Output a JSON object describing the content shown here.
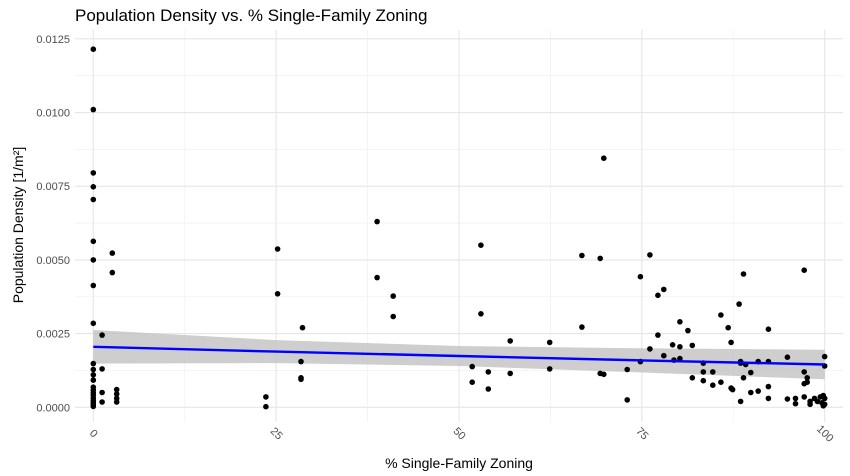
{
  "chart_data": {
    "type": "scatter",
    "title": "Population Density vs. % Single-Family Zoning",
    "xlabel": "% Single-Family Zoning",
    "ylabel_text": "Population Density",
    "ylabel_unit": "[1/m²]",
    "xlim": [
      -2.5,
      102.5
    ],
    "ylim": [
      -0.0005,
      0.0128
    ],
    "x_ticks": [
      0,
      25,
      50,
      75,
      100
    ],
    "x_tick_labels": [
      "0",
      "25",
      "50",
      "75",
      "100"
    ],
    "y_ticks": [
      0,
      0.0025,
      0.005,
      0.0075,
      0.01,
      0.0125
    ],
    "y_tick_labels": [
      "0.0000",
      "0.0025",
      "0.0050",
      "0.0075",
      "0.0100",
      "0.0125"
    ],
    "grid": true,
    "point_color": "#000000",
    "trend": {
      "type": "linear",
      "color": "#0000ff",
      "band_color": "#bebebe",
      "x": [
        0,
        25,
        50,
        75,
        100
      ],
      "y": [
        0.00205,
        0.00189,
        0.00174,
        0.00159,
        0.00145
      ],
      "lower": [
        0.00148,
        0.0015,
        0.0014,
        0.00118,
        0.00095
      ],
      "upper": [
        0.00262,
        0.00228,
        0.00208,
        0.002,
        0.00195
      ]
    },
    "points": [
      [
        0,
        0.01215
      ],
      [
        0,
        0.0101
      ],
      [
        0,
        0.00795
      ],
      [
        0,
        0.00748
      ],
      [
        0,
        0.00705
      ],
      [
        0,
        0.00563
      ],
      [
        0,
        0.005
      ],
      [
        0,
        0.00413
      ],
      [
        0,
        0.00285
      ],
      [
        0,
        0.00148
      ],
      [
        0,
        0.00128
      ],
      [
        0,
        0.0011
      ],
      [
        0,
        0.00092
      ],
      [
        0,
        0.00068
      ],
      [
        0,
        0.00058
      ],
      [
        0,
        0.00048
      ],
      [
        0,
        0.0004
      ],
      [
        0,
        0.0003
      ],
      [
        0,
        0.00022
      ],
      [
        0,
        0.00015
      ],
      [
        0,
        8e-05
      ],
      [
        0,
        3e-05
      ],
      [
        1.2,
        0.00245
      ],
      [
        1.2,
        0.0013
      ],
      [
        1.2,
        0.0005
      ],
      [
        1.2,
        0.00018
      ],
      [
        2.6,
        0.00523
      ],
      [
        2.6,
        0.00457
      ],
      [
        3.2,
        0.0006
      ],
      [
        3.2,
        0.00045
      ],
      [
        3.2,
        0.0003
      ],
      [
        3.2,
        0.00018
      ],
      [
        23.6,
        0.00035
      ],
      [
        23.6,
        2e-05
      ],
      [
        25.2,
        0.00537
      ],
      [
        25.2,
        0.00385
      ],
      [
        28.6,
        0.0027
      ],
      [
        28.4,
        0.00155
      ],
      [
        28.4,
        0.001
      ],
      [
        28.4,
        0.00095
      ],
      [
        38.8,
        0.0063
      ],
      [
        38.8,
        0.0044
      ],
      [
        41.0,
        0.00377
      ],
      [
        41.0,
        0.00308
      ],
      [
        51.8,
        0.00138
      ],
      [
        51.8,
        0.00085
      ],
      [
        53.0,
        0.0055
      ],
      [
        53.0,
        0.00317
      ],
      [
        54.0,
        0.0012
      ],
      [
        54.0,
        0.00062
      ],
      [
        57.0,
        0.00225
      ],
      [
        57.0,
        0.00115
      ],
      [
        62.4,
        0.0022
      ],
      [
        62.4,
        0.0013
      ],
      [
        66.8,
        0.00515
      ],
      [
        66.8,
        0.00272
      ],
      [
        69.3,
        0.00505
      ],
      [
        69.3,
        0.00115
      ],
      [
        69.8,
        0.00845
      ],
      [
        69.8,
        0.00112
      ],
      [
        73.0,
        0.00128
      ],
      [
        73.0,
        0.00025
      ],
      [
        74.8,
        0.00443
      ],
      [
        74.8,
        0.00155
      ],
      [
        76.1,
        0.00517
      ],
      [
        76.1,
        0.00198
      ],
      [
        77.2,
        0.0038
      ],
      [
        77.2,
        0.00245
      ],
      [
        78.0,
        0.004
      ],
      [
        78.0,
        0.00175
      ],
      [
        79.2,
        0.00212
      ],
      [
        79.4,
        0.0016
      ],
      [
        80.2,
        0.0029
      ],
      [
        80.2,
        0.00205
      ],
      [
        80.2,
        0.00165
      ],
      [
        81.3,
        0.0026
      ],
      [
        81.9,
        0.0021
      ],
      [
        81.9,
        0.001
      ],
      [
        83.4,
        0.0015
      ],
      [
        83.4,
        0.0012
      ],
      [
        83.4,
        0.0009
      ],
      [
        84.7,
        0.0012
      ],
      [
        84.7,
        0.00075
      ],
      [
        85.8,
        0.00313
      ],
      [
        85.8,
        0.00085
      ],
      [
        86.8,
        0.0027
      ],
      [
        87.2,
        0.0022
      ],
      [
        87.2,
        0.00065
      ],
      [
        87.4,
        0.0006
      ],
      [
        88.3,
        0.0035
      ],
      [
        88.5,
        0.00155
      ],
      [
        88.5,
        0.0015
      ],
      [
        88.5,
        0.0002
      ],
      [
        88.9,
        0.00452
      ],
      [
        88.9,
        0.001
      ],
      [
        89.2,
        0.00145
      ],
      [
        89.9,
        0.00118
      ],
      [
        89.9,
        0.0005
      ],
      [
        90.9,
        0.00155
      ],
      [
        90.9,
        0.00055
      ],
      [
        92.3,
        0.00265
      ],
      [
        92.3,
        0.00155
      ],
      [
        92.3,
        0.0007
      ],
      [
        92.3,
        0.0003
      ],
      [
        94.9,
        0.0017
      ],
      [
        94.9,
        0.00028
      ],
      [
        96.0,
        0.0003
      ],
      [
        96.0,
        0.00012
      ],
      [
        97.2,
        0.00465
      ],
      [
        97.2,
        0.0012
      ],
      [
        97.2,
        0.0008
      ],
      [
        97.2,
        0.00035
      ],
      [
        97.6,
        0.001
      ],
      [
        97.6,
        0.00085
      ],
      [
        98.0,
        0.0002
      ],
      [
        98.0,
        0.0001
      ],
      [
        98.6,
        0.0003
      ],
      [
        99.0,
        0.0002
      ],
      [
        99.4,
        0.00035
      ],
      [
        99.6,
        0.00015
      ],
      [
        99.8,
        0.0004
      ],
      [
        99.8,
        5e-05
      ],
      [
        100,
        0.00172
      ],
      [
        100,
        0.0014
      ],
      [
        100,
        0.0003
      ],
      [
        100,
        0.0001
      ]
    ]
  }
}
